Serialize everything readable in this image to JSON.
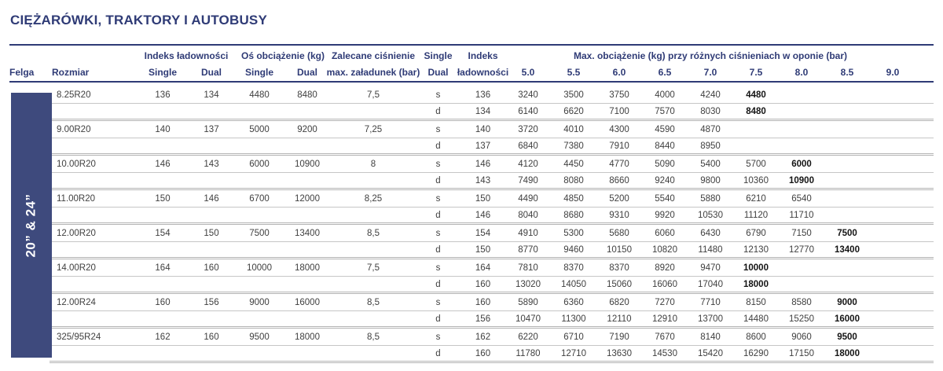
{
  "title": "CIĘŻARÓWKI, TRAKTORY I AUTOBUSY",
  "sidebar_label": "20” & 24”",
  "header": {
    "felga": "Felga",
    "rozmiar": "Rozmiar",
    "load_index_group": "Indeks ładowności",
    "axle_load_group": "Oś obciążenie (kg)",
    "single": "Single",
    "dual": "Dual",
    "recommended_pressure_line1": "Zalecane ciśnienie",
    "recommended_pressure_line2": "max. załadunek (bar)",
    "single_dual_line1": "Single",
    "single_dual_line2": "Dual",
    "load_index2_line1": "Indeks",
    "load_index2_line2": "ładowności",
    "max_load_group": "Max. obciążenie (kg) przy różnych ciśnieniach w oponie (bar)",
    "pressure_columns": [
      "5.0",
      "5.5",
      "6.0",
      "6.5",
      "7.0",
      "7.5",
      "8.0",
      "8.5",
      "9.0"
    ]
  },
  "rows": [
    {
      "size": "8.25R20",
      "index_single": "136",
      "index_dual": "134",
      "axle_single": "4480",
      "axle_dual": "8480",
      "pressure": "7,5",
      "sub_rows": [
        {
          "sd": "s",
          "load_index": "136",
          "loads": [
            "3240",
            "3500",
            "3750",
            "4000",
            "4240",
            "4480",
            "",
            "",
            ""
          ],
          "bold_col": 5
        },
        {
          "sd": "d",
          "load_index": "134",
          "loads": [
            "6140",
            "6620",
            "7100",
            "7570",
            "8030",
            "8480",
            "",
            "",
            ""
          ],
          "bold_col": 5
        }
      ]
    },
    {
      "size": "9.00R20",
      "index_single": "140",
      "index_dual": "137",
      "axle_single": "5000",
      "axle_dual": "9200",
      "pressure": "7,25",
      "sub_rows": [
        {
          "sd": "s",
          "load_index": "140",
          "loads": [
            "3720",
            "4010",
            "4300",
            "4590",
            "4870",
            "",
            "",
            "",
            ""
          ],
          "bold_col": -1
        },
        {
          "sd": "d",
          "load_index": "137",
          "loads": [
            "6840",
            "7380",
            "7910",
            "8440",
            "8950",
            "",
            "",
            "",
            ""
          ],
          "bold_col": -1
        }
      ]
    },
    {
      "size": "10.00R20",
      "index_single": "146",
      "index_dual": "143",
      "axle_single": "6000",
      "axle_dual": "10900",
      "pressure": "8",
      "sub_rows": [
        {
          "sd": "s",
          "load_index": "146",
          "loads": [
            "4120",
            "4450",
            "4770",
            "5090",
            "5400",
            "5700",
            "6000",
            "",
            ""
          ],
          "bold_col": 6
        },
        {
          "sd": "d",
          "load_index": "143",
          "loads": [
            "7490",
            "8080",
            "8660",
            "9240",
            "9800",
            "10360",
            "10900",
            "",
            ""
          ],
          "bold_col": 6
        }
      ]
    },
    {
      "size": "11.00R20",
      "index_single": "150",
      "index_dual": "146",
      "axle_single": "6700",
      "axle_dual": "12000",
      "pressure": "8,25",
      "sub_rows": [
        {
          "sd": "s",
          "load_index": "150",
          "loads": [
            "4490",
            "4850",
            "5200",
            "5540",
            "5880",
            "6210",
            "6540",
            "",
            ""
          ],
          "bold_col": -1
        },
        {
          "sd": "d",
          "load_index": "146",
          "loads": [
            "8040",
            "8680",
            "9310",
            "9920",
            "10530",
            "11120",
            "11710",
            "",
            ""
          ],
          "bold_col": -1
        }
      ]
    },
    {
      "size": "12.00R20",
      "index_single": "154",
      "index_dual": "150",
      "axle_single": "7500",
      "axle_dual": "13400",
      "pressure": "8,5",
      "sub_rows": [
        {
          "sd": "s",
          "load_index": "154",
          "loads": [
            "4910",
            "5300",
            "5680",
            "6060",
            "6430",
            "6790",
            "7150",
            "7500",
            ""
          ],
          "bold_col": 7
        },
        {
          "sd": "d",
          "load_index": "150",
          "loads": [
            "8770",
            "9460",
            "10150",
            "10820",
            "11480",
            "12130",
            "12770",
            "13400",
            ""
          ],
          "bold_col": 7
        }
      ]
    },
    {
      "size": "14.00R20",
      "index_single": "164",
      "index_dual": "160",
      "axle_single": "10000",
      "axle_dual": "18000",
      "pressure": "7,5",
      "sub_rows": [
        {
          "sd": "s",
          "load_index": "164",
          "loads": [
            "7810",
            "8370",
            "8370",
            "8920",
            "9470",
            "10000",
            "",
            "",
            ""
          ],
          "bold_col": 5
        },
        {
          "sd": "d",
          "load_index": "160",
          "loads": [
            "13020",
            "14050",
            "15060",
            "16060",
            "17040",
            "18000",
            "",
            "",
            ""
          ],
          "bold_col": 5
        }
      ]
    },
    {
      "size": "12.00R24",
      "index_single": "160",
      "index_dual": "156",
      "axle_single": "9000",
      "axle_dual": "16000",
      "pressure": "8,5",
      "sub_rows": [
        {
          "sd": "s",
          "load_index": "160",
          "loads": [
            "5890",
            "6360",
            "6820",
            "7270",
            "7710",
            "8150",
            "8580",
            "9000",
            ""
          ],
          "bold_col": 7
        },
        {
          "sd": "d",
          "load_index": "156",
          "loads": [
            "10470",
            "11300",
            "12110",
            "12910",
            "13700",
            "14480",
            "15250",
            "16000",
            ""
          ],
          "bold_col": 7
        }
      ]
    },
    {
      "size": "325/95R24",
      "index_single": "162",
      "index_dual": "160",
      "axle_single": "9500",
      "axle_dual": "18000",
      "pressure": "8,5",
      "sub_rows": [
        {
          "sd": "s",
          "load_index": "162",
          "loads": [
            "6220",
            "6710",
            "7190",
            "7670",
            "8140",
            "8600",
            "9060",
            "9500",
            ""
          ],
          "bold_col": 7
        },
        {
          "sd": "d",
          "load_index": "160",
          "loads": [
            "11780",
            "12710",
            "13630",
            "14530",
            "15420",
            "16290",
            "17150",
            "18000",
            ""
          ],
          "bold_col": 7
        }
      ]
    }
  ]
}
